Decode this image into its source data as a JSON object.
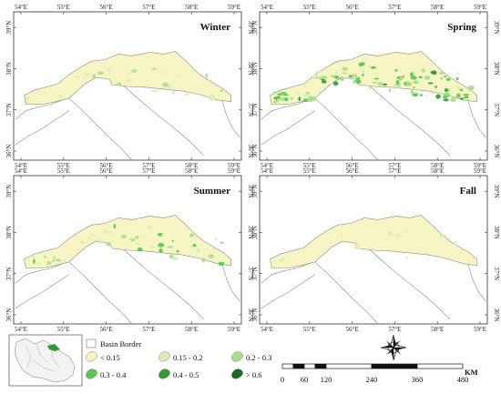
{
  "panels": [
    {
      "id": "winter",
      "title": "Winter",
      "level": "low"
    },
    {
      "id": "spring",
      "title": "Spring",
      "level": "high"
    },
    {
      "id": "summer",
      "title": "Summer",
      "level": "medium"
    },
    {
      "id": "fall",
      "title": "Fall",
      "level": "minimal"
    }
  ],
  "axes": {
    "lon_labels": [
      "54°E",
      "55°E",
      "56°E",
      "57°E",
      "58°E",
      "59°E"
    ],
    "lat_labels": [
      "36°N",
      "37°N",
      "38°N",
      "39°N"
    ]
  },
  "legend": {
    "basin_border": "Basin Border",
    "classes": [
      {
        "label": "< 0.15",
        "color": "#f6f5c3"
      },
      {
        "label": "0.15 - 0.2",
        "color": "#dcedb8"
      },
      {
        "label": "0.2 - 0.3",
        "color": "#a9de8c"
      },
      {
        "label": "0.3 - 0.4",
        "color": "#57c84a"
      },
      {
        "label": "0.4 - 0.5",
        "color": "#2f9a35"
      },
      {
        "label": "> 0.6",
        "color": "#1c6a22"
      }
    ]
  },
  "scalebar": {
    "ticks": [
      "0",
      "60",
      "120",
      "240",
      "360",
      "480"
    ],
    "unit": "KM"
  },
  "colors": {
    "basin_fill": "#f6f5c3",
    "border": "#8a8a8a"
  }
}
